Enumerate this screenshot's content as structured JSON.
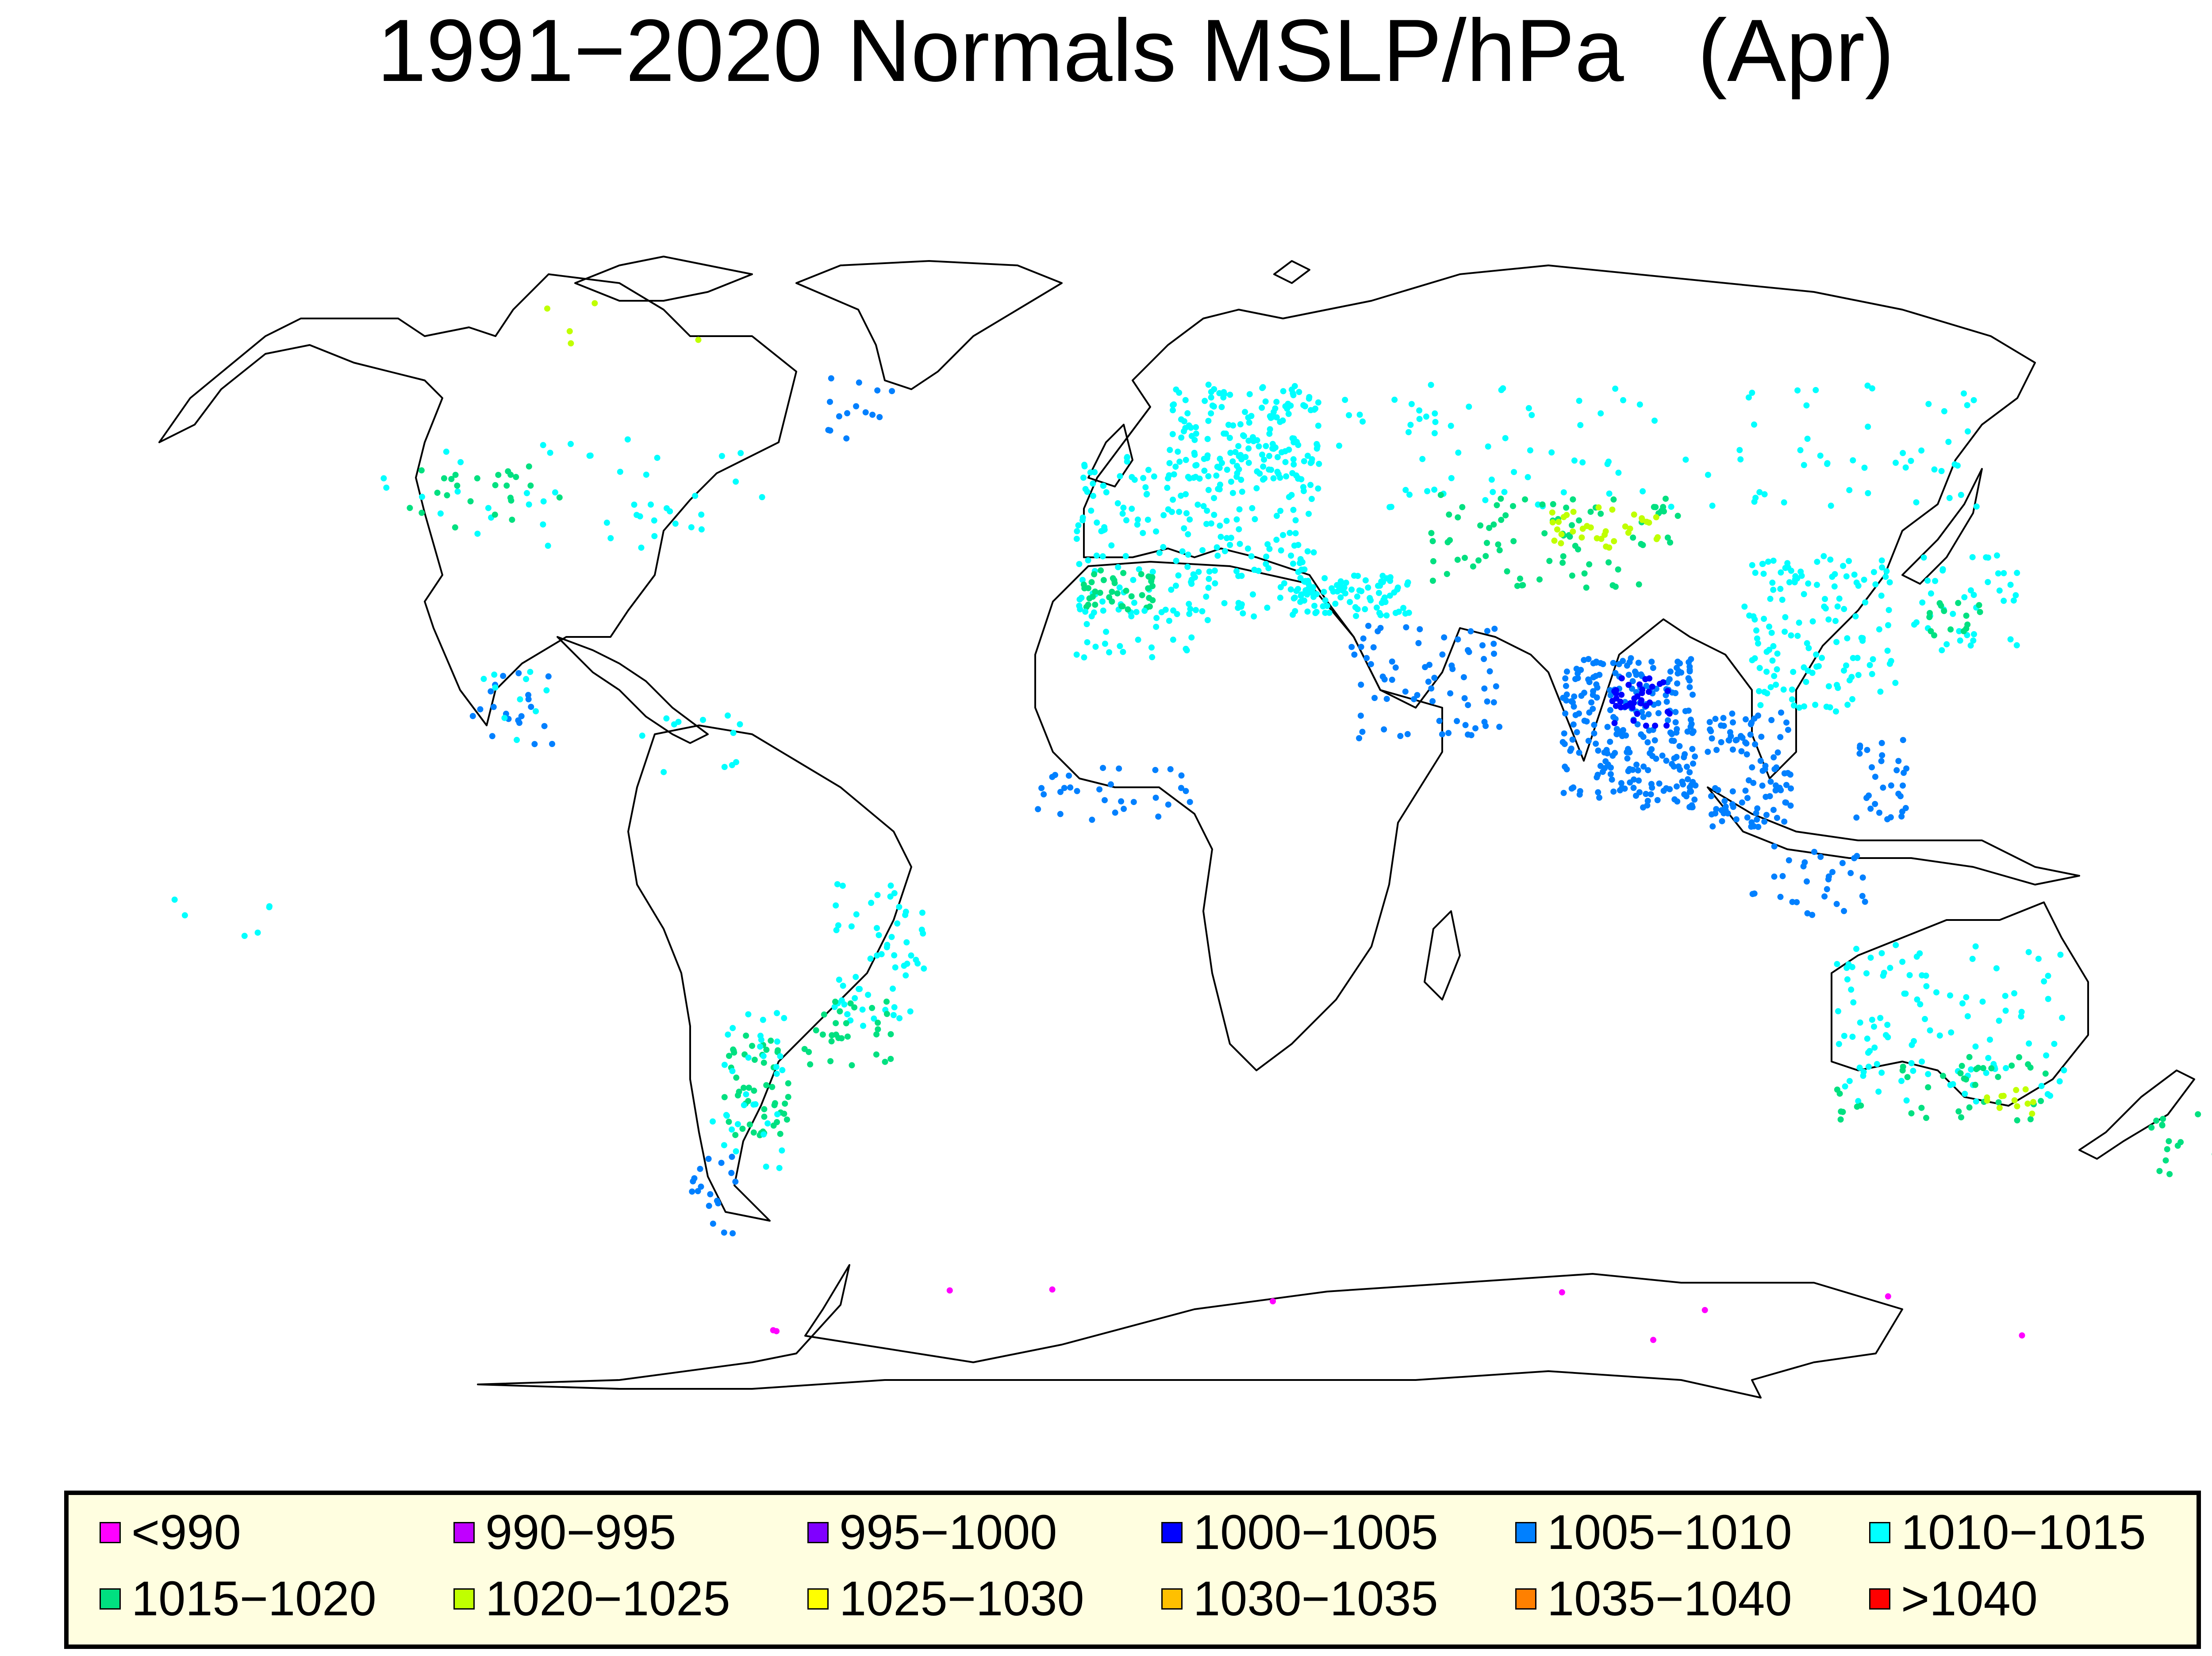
{
  "title": "1991−2020 Normals MSLP/hPa   (Apr)",
  "legend": [
    {
      "label": "<990",
      "color": "#ff00ff"
    },
    {
      "label": "990−995",
      "color": "#c000ff"
    },
    {
      "label": "995−1000",
      "color": "#8000ff"
    },
    {
      "label": "1000−1005",
      "color": "#0000ff"
    },
    {
      "label": "1005−1010",
      "color": "#0080ff"
    },
    {
      "label": "1010−1015",
      "color": "#00ffff"
    },
    {
      "label": "1015−1020",
      "color": "#00e080"
    },
    {
      "label": "1020−1025",
      "color": "#c0ff00"
    },
    {
      "label": "1025−1030",
      "color": "#ffff00"
    },
    {
      "label": "1030−1035",
      "color": "#ffc000"
    },
    {
      "label": "1035−1040",
      "color": "#ff8000"
    },
    {
      "label": ">1040",
      "color": "#ff0000"
    }
  ],
  "map_data": {
    "projection": "equirectangular",
    "variable": "MSLP",
    "unit": "hPa",
    "period": "1991−2020",
    "month": "Apr",
    "lon_range": [
      -180,
      180
    ],
    "lat_range": [
      -90,
      90
    ],
    "station_regions": [
      {
        "region": "Canada",
        "class": "1010−1015",
        "lon": [
          -125,
          -60
        ],
        "lat": [
          46,
          62
        ],
        "n": 45
      },
      {
        "region": "Canada prairies",
        "class": "1015−1020",
        "lon": [
          -120,
          -95
        ],
        "lat": [
          49,
          58
        ],
        "n": 25
      },
      {
        "region": "Greenland",
        "class": "1005−1010",
        "lon": [
          -52,
          -40
        ],
        "lat": [
          62,
          72
        ],
        "n": 14
      },
      {
        "region": "Canadian Arctic",
        "class": "1020−1025",
        "lon": [
          -100,
          -70
        ],
        "lat": [
          74,
          82
        ],
        "n": 5
      },
      {
        "region": "Mexico",
        "class": "1005−1010",
        "lon": [
          -110,
          -96
        ],
        "lat": [
          17,
          28
        ],
        "n": 20
      },
      {
        "region": "Mexico",
        "class": "1010−1015",
        "lon": [
          -110,
          -96
        ],
        "lat": [
          17,
          28
        ],
        "n": 10
      },
      {
        "region": "Caribbean",
        "class": "1010−1015",
        "lon": [
          -82,
          -62
        ],
        "lat": [
          12,
          22
        ],
        "n": 12
      },
      {
        "region": "Eastern Brazil",
        "class": "1010−1015",
        "lon": [
          -50,
          -35
        ],
        "lat": [
          -24,
          -3
        ],
        "n": 60
      },
      {
        "region": "Southern Brazil",
        "class": "1015−1020",
        "lon": [
          -55,
          -40
        ],
        "lat": [
          -30,
          -20
        ],
        "n": 30
      },
      {
        "region": "Argentina",
        "class": "1015−1020",
        "lon": [
          -68,
          -57
        ],
        "lat": [
          -40,
          -25
        ],
        "n": 50
      },
      {
        "region": "Argentina",
        "class": "1010−1015",
        "lon": [
          -70,
          -58
        ],
        "lat": [
          -45,
          -22
        ],
        "n": 35
      },
      {
        "region": "Patagonia",
        "class": "1005−1010",
        "lon": [
          -74,
          -66
        ],
        "lat": [
          -55,
          -42
        ],
        "n": 18
      },
      {
        "region": "Western Europe",
        "class": "1010−1015",
        "lon": [
          -10,
          30
        ],
        "lat": [
          36,
          60
        ],
        "n": 220
      },
      {
        "region": "Iberia",
        "class": "1015−1020",
        "lon": [
          -9,
          3
        ],
        "lat": [
          37,
          43
        ],
        "n": 40
      },
      {
        "region": "Scandinavia",
        "class": "1010−1015",
        "lon": [
          5,
          30
        ],
        "lat": [
          56,
          70
        ],
        "n": 160
      },
      {
        "region": "Russia",
        "class": "1010−1015",
        "lon": [
          30,
          140
        ],
        "lat": [
          52,
          70
        ],
        "n": 110
      },
      {
        "region": "Kazakhstan",
        "class": "1015−1020",
        "lon": [
          48,
          90
        ],
        "lat": [
          40,
          54
        ],
        "n": 80
      },
      {
        "region": "Central Asia high",
        "class": "1020−1025",
        "lon": [
          68,
          86
        ],
        "lat": [
          46,
          52
        ],
        "n": 35
      },
      {
        "region": "Turkey",
        "class": "1010−1015",
        "lon": [
          26,
          45
        ],
        "lat": [
          36,
          42
        ],
        "n": 90
      },
      {
        "region": "North Africa",
        "class": "1010−1015",
        "lon": [
          -10,
          12
        ],
        "lat": [
          30,
          37
        ],
        "n": 30
      },
      {
        "region": "Middle East",
        "class": "1005−1010",
        "lon": [
          35,
          60
        ],
        "lat": [
          18,
          35
        ],
        "n": 70
      },
      {
        "region": "India",
        "class": "1005−1010",
        "lon": [
          70,
          92
        ],
        "lat": [
          8,
          30
        ],
        "n": 260
      },
      {
        "region": "India north",
        "class": "1000−1005",
        "lon": [
          78,
          88
        ],
        "lat": [
          20,
          27
        ],
        "n": 40
      },
      {
        "region": "Southeast Asia",
        "class": "1005−1010",
        "lon": [
          94,
          108
        ],
        "lat": [
          5,
          22
        ],
        "n": 100
      },
      {
        "region": "China",
        "class": "1010−1015",
        "lon": [
          100,
          125
        ],
        "lat": [
          22,
          45
        ],
        "n": 140
      },
      {
        "region": "Japan",
        "class": "1010−1015",
        "lon": [
          128,
          145
        ],
        "lat": [
          31,
          45
        ],
        "n": 40
      },
      {
        "region": "Japan",
        "class": "1015−1020",
        "lon": [
          130,
          140
        ],
        "lat": [
          33,
          38
        ],
        "n": 15
      },
      {
        "region": "Philippines",
        "class": "1005−1010",
        "lon": [
          118,
          127
        ],
        "lat": [
          6,
          18
        ],
        "n": 30
      },
      {
        "region": "Indonesia",
        "class": "1005−1010",
        "lon": [
          100,
          120
        ],
        "lat": [
          -8,
          3
        ],
        "n": 30
      },
      {
        "region": "West Africa",
        "class": "1005−1010",
        "lon": [
          -17,
          10
        ],
        "lat": [
          5,
          14
        ],
        "n": 30
      },
      {
        "region": "Australia",
        "class": "1010−1015",
        "lon": [
          115,
          153
        ],
        "lat": [
          -35,
          -12
        ],
        "n": 110
      },
      {
        "region": "Australia south",
        "class": "1015−1020",
        "lon": [
          115,
          150
        ],
        "lat": [
          -38,
          -28
        ],
        "n": 40
      },
      {
        "region": "SE Australia",
        "class": "1020−1025",
        "lon": [
          140,
          148
        ],
        "lat": [
          -37,
          -33
        ],
        "n": 12
      },
      {
        "region": "New Zealand",
        "class": "1015−1020",
        "lon": [
          167,
          178
        ],
        "lat": [
          -46,
          -35
        ],
        "n": 15
      },
      {
        "region": "Pacific islands",
        "class": "1010−1015",
        "lon": [
          -160,
          -140
        ],
        "lat": [
          -20,
          -5
        ],
        "n": 6
      },
      {
        "region": "Antarctica",
        "class": "<990",
        "lon": [
          -65,
          165
        ],
        "lat": [
          -70,
          -62
        ],
        "n": 10
      }
    ]
  }
}
